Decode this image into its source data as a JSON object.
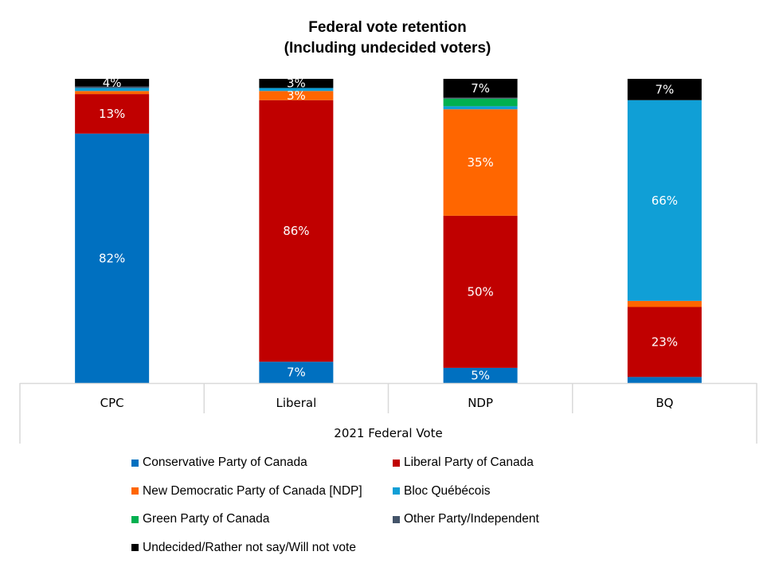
{
  "chart_data": {
    "type": "bar",
    "stacked": true,
    "title": "Federal vote retention",
    "subtitle": "(Including undecided voters)",
    "xlabel": "2021 Federal Vote",
    "ylabel": "",
    "ylim": [
      0,
      100
    ],
    "categories": [
      "CPC",
      "Liberal",
      "NDP",
      "BQ"
    ],
    "series": [
      {
        "name": "Conservative Party of Canada",
        "color": "#0070C0",
        "values": [
          82,
          7,
          5,
          2
        ],
        "labels": [
          "82%",
          "7%",
          "5%",
          ""
        ]
      },
      {
        "name": "Liberal Party of Canada",
        "color": "#C00000",
        "values": [
          13,
          86,
          50,
          23
        ],
        "labels": [
          "13%",
          "86%",
          "50%",
          "23%"
        ]
      },
      {
        "name": "New Democratic Party of Canada [NDP]",
        "color": "#FF6600",
        "values": [
          1,
          3,
          35,
          2
        ],
        "labels": [
          "",
          "3%",
          "35%",
          ""
        ]
      },
      {
        "name": "Bloc Québécois",
        "color": "#109FD6",
        "values": [
          1,
          1,
          1,
          66
        ],
        "labels": [
          "",
          "",
          "",
          "66%"
        ]
      },
      {
        "name": "Green Party of Canada",
        "color": "#00B050",
        "values": [
          0,
          0,
          2.5,
          0
        ],
        "labels": [
          "",
          "",
          "",
          ""
        ]
      },
      {
        "name": "Other Party/Independent",
        "color": "#44546A",
        "values": [
          0.5,
          0,
          0.3,
          0
        ],
        "labels": [
          "",
          "",
          "",
          ""
        ]
      },
      {
        "name": "Undecided/Rather not say/Will not vote",
        "color": "#000000",
        "values": [
          4,
          3,
          7,
          7
        ],
        "labels": [
          "4%",
          "3%",
          "7%",
          "7%"
        ]
      }
    ],
    "legend_position": "bottom",
    "grid": false
  }
}
